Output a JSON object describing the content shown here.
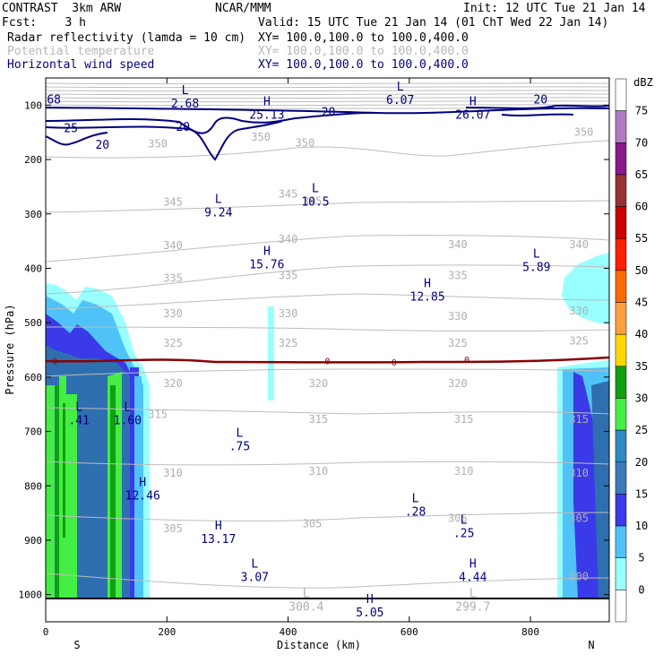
{
  "header": {
    "title": "CONTRAST  3km ARW",
    "org": "NCAR/MMM",
    "init": "Init: 12 UTC Tue 21 Jan 14",
    "fcst": "Fcst:    3 h",
    "valid": "Valid: 15 UTC Tue 21 Jan 14 (01 ChT Wed 22 Jan 14)",
    "fields": [
      {
        "name": "Radar reflectivity (lamda = 10 cm)",
        "xy": "XY= 100.0,100.0 to 100.0,400.0",
        "color": "#000000"
      },
      {
        "name": "Potential temperature",
        "xy": "XY= 100.0,100.0 to 100.0,400.0",
        "color": "#b8b8b8"
      },
      {
        "name": "Horizontal wind speed",
        "xy": "XY= 100.0,100.0 to 100.0,400.0",
        "color": "#000080"
      }
    ]
  },
  "chart_data": {
    "type": "cross-section",
    "xlabel": "Distance (km)",
    "ylabel": "Pressure (hPa)",
    "xlim": [
      0,
      930
    ],
    "ylim": [
      1050,
      50
    ],
    "x_ticks": [
      0,
      200,
      400,
      600,
      800
    ],
    "y_ticks": [
      100,
      200,
      300,
      400,
      500,
      600,
      700,
      800,
      900,
      1000
    ],
    "endpoints": {
      "left": "S",
      "right": "N"
    },
    "colorbar": {
      "unit": "dBZ",
      "levels": [
        0,
        5,
        10,
        15,
        20,
        25,
        30,
        35,
        40,
        45,
        50,
        55,
        60,
        65,
        70,
        75
      ],
      "colors": [
        "#ffffff",
        "#99ffff",
        "#4fc3f7",
        "#3a3ae8",
        "#3d7ab8",
        "#2e8bc0",
        "#44ee44",
        "#10a010",
        "#ffd700",
        "#ffa040",
        "#ff6a00",
        "#ff2000",
        "#cc0000",
        "#993333",
        "#8b1a8b",
        "#b07bc0",
        "#ffffff"
      ]
    },
    "theta_labels": [
      {
        "v": "350",
        "x": 355,
        "p": 165
      },
      {
        "v": "350",
        "x": 185,
        "p": 178
      },
      {
        "v": "350",
        "x": 428,
        "p": 176
      },
      {
        "v": "350",
        "x": 888,
        "p": 156
      },
      {
        "v": "345",
        "x": 210,
        "p": 285
      },
      {
        "v": "345",
        "x": 440,
        "p": 283
      },
      {
        "v": "345",
        "x": 400,
        "p": 270
      },
      {
        "v": "340",
        "x": 210,
        "p": 365
      },
      {
        "v": "340",
        "x": 400,
        "p": 353
      },
      {
        "v": "340",
        "x": 680,
        "p": 363
      },
      {
        "v": "340",
        "x": 880,
        "p": 363
      },
      {
        "v": "335",
        "x": 210,
        "p": 425
      },
      {
        "v": "335",
        "x": 400,
        "p": 420
      },
      {
        "v": "335",
        "x": 680,
        "p": 420
      },
      {
        "v": "330",
        "x": 210,
        "p": 490
      },
      {
        "v": "330",
        "x": 400,
        "p": 490
      },
      {
        "v": "330",
        "x": 680,
        "p": 495
      },
      {
        "v": "330",
        "x": 880,
        "p": 485
      },
      {
        "v": "325",
        "x": 210,
        "p": 544
      },
      {
        "v": "325",
        "x": 400,
        "p": 544
      },
      {
        "v": "325",
        "x": 680,
        "p": 544
      },
      {
        "v": "325",
        "x": 880,
        "p": 540
      },
      {
        "v": "320",
        "x": 210,
        "p": 618
      },
      {
        "v": "320",
        "x": 450,
        "p": 618
      },
      {
        "v": "320",
        "x": 680,
        "p": 618
      },
      {
        "v": "315",
        "x": 185,
        "p": 675
      },
      {
        "v": "315",
        "x": 450,
        "p": 684
      },
      {
        "v": "315",
        "x": 690,
        "p": 684
      },
      {
        "v": "315",
        "x": 880,
        "p": 684
      },
      {
        "v": "310",
        "x": 210,
        "p": 783
      },
      {
        "v": "310",
        "x": 450,
        "p": 780
      },
      {
        "v": "310",
        "x": 690,
        "p": 780
      },
      {
        "v": "310",
        "x": 880,
        "p": 783
      },
      {
        "v": "305",
        "x": 210,
        "p": 885
      },
      {
        "v": "305",
        "x": 440,
        "p": 876
      },
      {
        "v": "305",
        "x": 680,
        "p": 866
      },
      {
        "v": "305",
        "x": 880,
        "p": 866
      },
      {
        "v": "300",
        "x": 880,
        "p": 973
      }
    ],
    "wind_labels": [
      {
        "v": "68",
        "x": 2,
        "p": 97
      },
      {
        "v": "25",
        "x": 30,
        "p": 150
      },
      {
        "v": "20",
        "x": 82,
        "p": 180
      },
      {
        "v": "20",
        "x": 215,
        "p": 147
      },
      {
        "v": "20",
        "x": 455,
        "p": 120
      },
      {
        "v": "20",
        "x": 805,
        "p": 97
      }
    ],
    "zero_labels": [
      {
        "v": "0",
        "x": 15,
        "p": 570
      },
      {
        "v": "0",
        "x": 465,
        "p": 570
      },
      {
        "v": "0",
        "x": 575,
        "p": 572
      },
      {
        "v": "0",
        "x": 695,
        "p": 567
      }
    ],
    "extrema": [
      {
        "t": "L",
        "v": "2.68",
        "x": 230,
        "p": 80,
        "c": "blue"
      },
      {
        "t": "H",
        "v": "25.13",
        "x": 365,
        "p": 100,
        "c": "blue"
      },
      {
        "t": "L",
        "v": "6.07",
        "x": 585,
        "p": 73,
        "c": "blue"
      },
      {
        "t": "H",
        "v": "26.07",
        "x": 705,
        "p": 100,
        "c": "blue"
      },
      {
        "t": "L",
        "v": "9.24",
        "x": 285,
        "p": 280,
        "c": "blue"
      },
      {
        "t": "L",
        "v": "10.5",
        "x": 445,
        "p": 260,
        "c": "blue"
      },
      {
        "t": "H",
        "v": "15.76",
        "x": 365,
        "p": 375,
        "c": "blue"
      },
      {
        "t": "L",
        "v": "5.89",
        "x": 810,
        "p": 380,
        "c": "blue"
      },
      {
        "t": "H",
        "v": "12.85",
        "x": 630,
        "p": 435,
        "c": "blue"
      },
      {
        "t": "L",
        "v": ".41",
        "x": 55,
        "p": 662,
        "c": "blue"
      },
      {
        "t": "L",
        "v": "1.60",
        "x": 135,
        "p": 662,
        "c": "blue"
      },
      {
        "t": "L",
        "v": ".75",
        "x": 320,
        "p": 710,
        "c": "blue"
      },
      {
        "t": "H",
        "v": "12.46",
        "x": 160,
        "p": 800,
        "c": "blue"
      },
      {
        "t": "L",
        "v": ".28",
        "x": 610,
        "p": 830,
        "c": "blue"
      },
      {
        "t": "H",
        "v": "13.17",
        "x": 285,
        "p": 880,
        "c": "blue"
      },
      {
        "t": "L",
        "v": ".25",
        "x": 690,
        "p": 870,
        "c": "blue"
      },
      {
        "t": "L",
        "v": "3.07",
        "x": 345,
        "p": 950,
        "c": "blue"
      },
      {
        "t": "H",
        "v": "4.44",
        "x": 705,
        "p": 950,
        "c": "blue"
      },
      {
        "t": "L",
        "v": "300.4",
        "x": 430,
        "p": 1005,
        "c": "gray"
      },
      {
        "t": "H",
        "v": "5.05",
        "x": 535,
        "p": 1015,
        "c": "blue"
      },
      {
        "t": "L",
        "v": "299.7",
        "x": 705,
        "p": 1005,
        "c": "gray"
      }
    ]
  }
}
